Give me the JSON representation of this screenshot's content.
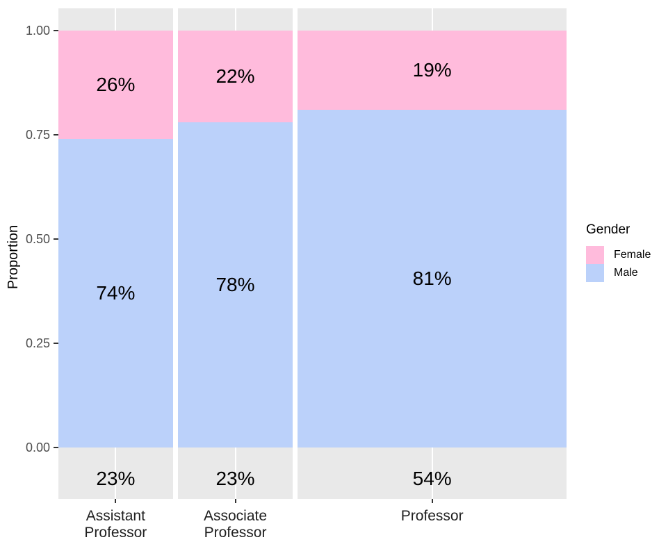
{
  "chart_data": {
    "type": "bar",
    "subtype": "mosaic-proportional-stacked",
    "title": "",
    "xlabel": "",
    "ylabel": "Proportion",
    "ylim": [
      0,
      1
    ],
    "grid": "white gridline at each category center on gray panel",
    "panel_bg": "#e9e9e9",
    "y_ticks": [
      {
        "label": "0.00",
        "value": 0.0
      },
      {
        "label": "0.25",
        "value": 0.25
      },
      {
        "label": "0.50",
        "value": 0.5
      },
      {
        "label": "0.75",
        "value": 0.75
      },
      {
        "label": "1.00",
        "value": 1.0
      }
    ],
    "categories": [
      "Assistant\nProfessor",
      "Associate\nProfessor",
      "Professor"
    ],
    "category_widths_pct": [
      23,
      23,
      54
    ],
    "category_width_labels": [
      "23%",
      "23%",
      "54%"
    ],
    "series": [
      {
        "name": "Female",
        "color": "#ffbbdc",
        "values_pct": [
          26,
          22,
          19
        ],
        "labels": [
          "26%",
          "22%",
          "19%"
        ]
      },
      {
        "name": "Male",
        "color": "#bbd1fa",
        "values_pct": [
          74,
          78,
          81
        ],
        "labels": [
          "74%",
          "78%",
          "81%"
        ]
      }
    ],
    "legend": {
      "title": "Gender",
      "position": "right",
      "entries": [
        {
          "label": "Female",
          "color": "#ffbbdc"
        },
        {
          "label": "Male",
          "color": "#bbd1fa"
        }
      ]
    }
  }
}
